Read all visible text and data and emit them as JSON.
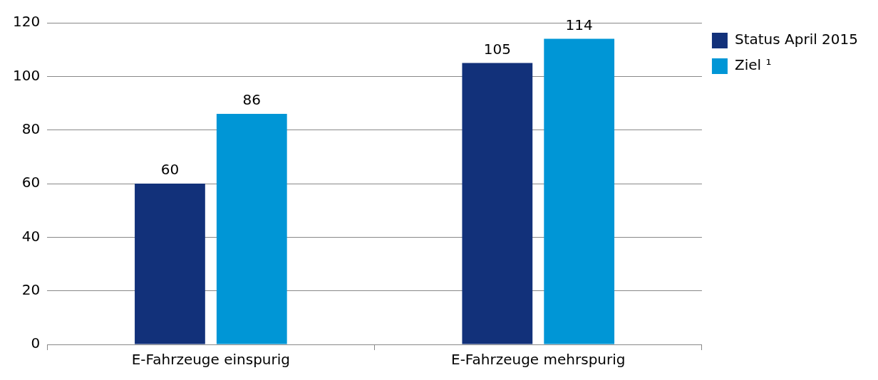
{
  "chart_data": {
    "type": "bar",
    "categories": [
      "E-Fahrzeuge einspurig",
      "E-Fahrzeuge mehrspurig"
    ],
    "series": [
      {
        "name": "Status April 2015",
        "color": "#12317a",
        "values": [
          60,
          105
        ]
      },
      {
        "name": "Ziel ¹",
        "color": "#0096d6",
        "values": [
          86,
          114
        ]
      }
    ],
    "ylim": [
      0,
      120
    ],
    "yticks": [
      0,
      20,
      40,
      60,
      80,
      100,
      120
    ],
    "grid": "y",
    "legend": "top right",
    "data_labels": true
  }
}
